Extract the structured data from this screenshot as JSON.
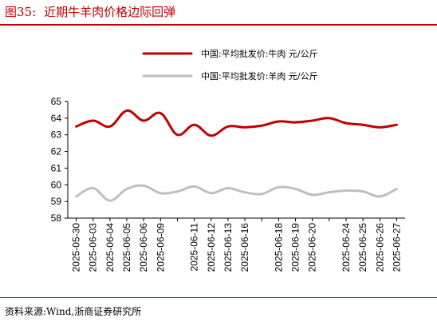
{
  "figure": {
    "label": "图35:",
    "title": "近期牛羊肉价格边际回弹",
    "source": "资料来源:Wind,浙商证券研究所"
  },
  "colors": {
    "title": "#c00000",
    "beef": "#c00000",
    "mutton": "#bfbfbf"
  },
  "chart_data": {
    "type": "line",
    "title": "",
    "xlabel": "",
    "ylabel": "",
    "ylim": [
      58,
      65
    ],
    "yticks": [
      58,
      59,
      60,
      61,
      62,
      63,
      64,
      65
    ],
    "grid": false,
    "legend_position": "top-center",
    "x": [
      "2025-05-30",
      "2025-06-03",
      "2025-06-04",
      "2025-06-05",
      "2025-06-06",
      "2025-06-09",
      "2025-06-10",
      "2025-06-11",
      "2025-06-12",
      "2025-06-13",
      "2025-06-16",
      "2025-06-17",
      "2025-06-18",
      "2025-06-19",
      "2025-06-20",
      "2025-06-23",
      "2025-06-24",
      "2025-06-25",
      "2025-06-26",
      "2025-06-27"
    ],
    "x_tick_labels": [
      "2025-05-30",
      "2025-06-03",
      "2025-06-04",
      "2025-06-05",
      "2025-06-06",
      "2025-06-09",
      "2025-06-11",
      "2025-06-12",
      "2025-06-13",
      "2025-06-16",
      "2025-06-18",
      "2025-06-19",
      "2025-06-20",
      "2025-06-24",
      "2025-06-25",
      "2025-06-26",
      "2025-06-27"
    ],
    "series": [
      {
        "name": "中国:平均批发价:牛肉 元/公斤",
        "color": "#c00000",
        "values": [
          63.5,
          63.85,
          63.5,
          64.45,
          63.85,
          64.3,
          63.0,
          63.6,
          62.95,
          63.5,
          63.45,
          63.55,
          63.8,
          63.75,
          63.85,
          64.0,
          63.7,
          63.6,
          63.45,
          63.6
        ]
      },
      {
        "name": "中国:平均批发价:羊肉 元/公斤",
        "color": "#bfbfbf",
        "values": [
          59.3,
          59.8,
          59.05,
          59.75,
          59.95,
          59.5,
          59.6,
          59.9,
          59.5,
          59.8,
          59.55,
          59.45,
          59.85,
          59.75,
          59.4,
          59.55,
          59.65,
          59.6,
          59.3,
          59.75
        ]
      }
    ]
  }
}
